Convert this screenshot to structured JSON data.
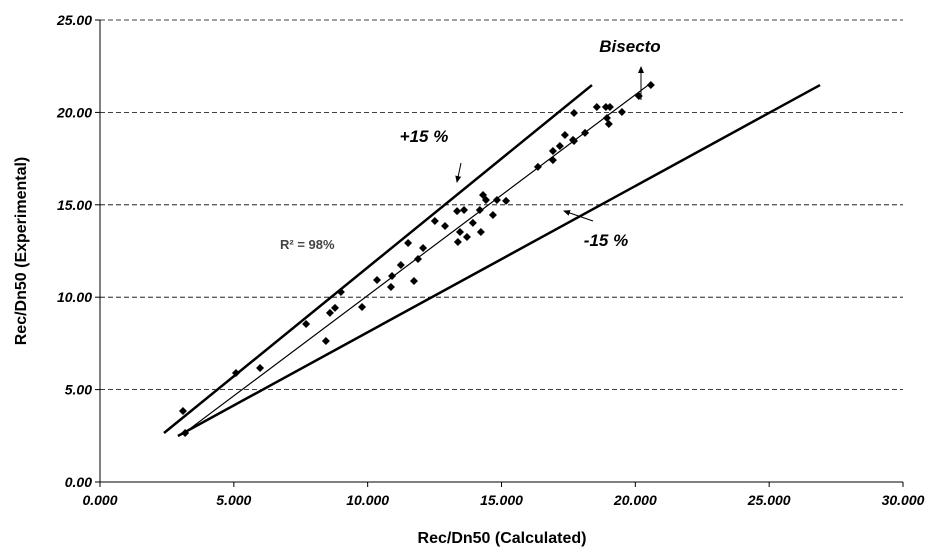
{
  "chart_data": {
    "type": "scatter",
    "x_label": "Rec/Dn50 (Calculated)",
    "y_label": "Rec/Dn50 (Experimental)",
    "xlim": [
      0,
      30
    ],
    "ylim": [
      0,
      25
    ],
    "xticks": [
      {
        "value": 0,
        "label": "0.000"
      },
      {
        "value": 5,
        "label": "5.000"
      },
      {
        "value": 10,
        "label": "10.000"
      },
      {
        "value": 15,
        "label": "15.000"
      },
      {
        "value": 20,
        "label": "20.000"
      },
      {
        "value": 25,
        "label": "25.000"
      },
      {
        "value": 30,
        "label": "30.000"
      }
    ],
    "yticks": [
      {
        "value": 0,
        "label": "0.00"
      },
      {
        "value": 5,
        "label": "5.00"
      },
      {
        "value": 10,
        "label": "10.00"
      },
      {
        "value": 15,
        "label": "15.00"
      },
      {
        "value": 20,
        "label": "20.00"
      },
      {
        "value": 25,
        "label": "25.00"
      }
    ],
    "grid": true,
    "color": "#000000",
    "x": [
      3.1,
      3.18,
      5.08,
      5.98,
      7.7,
      8.44,
      8.59,
      8.78,
      9.0,
      9.79,
      10.35,
      10.87,
      10.91,
      11.24,
      11.51,
      11.73,
      11.88,
      12.07,
      12.51,
      12.89,
      13.34,
      13.37,
      13.45,
      13.6,
      13.71,
      13.93,
      14.19,
      14.23,
      14.31,
      14.42,
      14.68,
      14.83,
      15.17,
      16.36,
      16.92,
      16.92,
      17.18,
      17.37,
      17.67,
      17.71,
      17.71,
      18.12,
      18.56,
      18.9,
      18.94,
      19.05,
      19.01,
      19.5,
      20.13,
      20.58
    ],
    "y": [
      3.84,
      2.65,
      5.9,
      6.17,
      8.55,
      7.63,
      9.15,
      9.42,
      10.28,
      9.47,
      10.93,
      10.55,
      11.15,
      11.74,
      12.93,
      10.88,
      12.07,
      12.66,
      14.12,
      13.85,
      14.66,
      12.99,
      13.53,
      14.72,
      13.26,
      14.02,
      14.72,
      13.53,
      15.53,
      15.26,
      14.45,
      15.26,
      15.21,
      17.05,
      17.42,
      17.91,
      18.18,
      18.78,
      18.51,
      18.45,
      19.97,
      18.89,
      20.29,
      20.29,
      19.7,
      20.29,
      19.37,
      20.02,
      20.89,
      21.48
    ],
    "lines": [
      {
        "x": [
          3.1,
          20.5
        ],
        "y": [
          2.6,
          21.5
        ]
      },
      {
        "x": [
          2.39,
          18.38
        ],
        "y": [
          2.65,
          21.48
        ]
      },
      {
        "x": [
          2.91,
          26.9
        ],
        "y": [
          2.49,
          21.48
        ]
      }
    ],
    "annotations": [
      "Bisecto",
      "+15 %",
      "-15 %",
      "R² = 98%"
    ]
  }
}
